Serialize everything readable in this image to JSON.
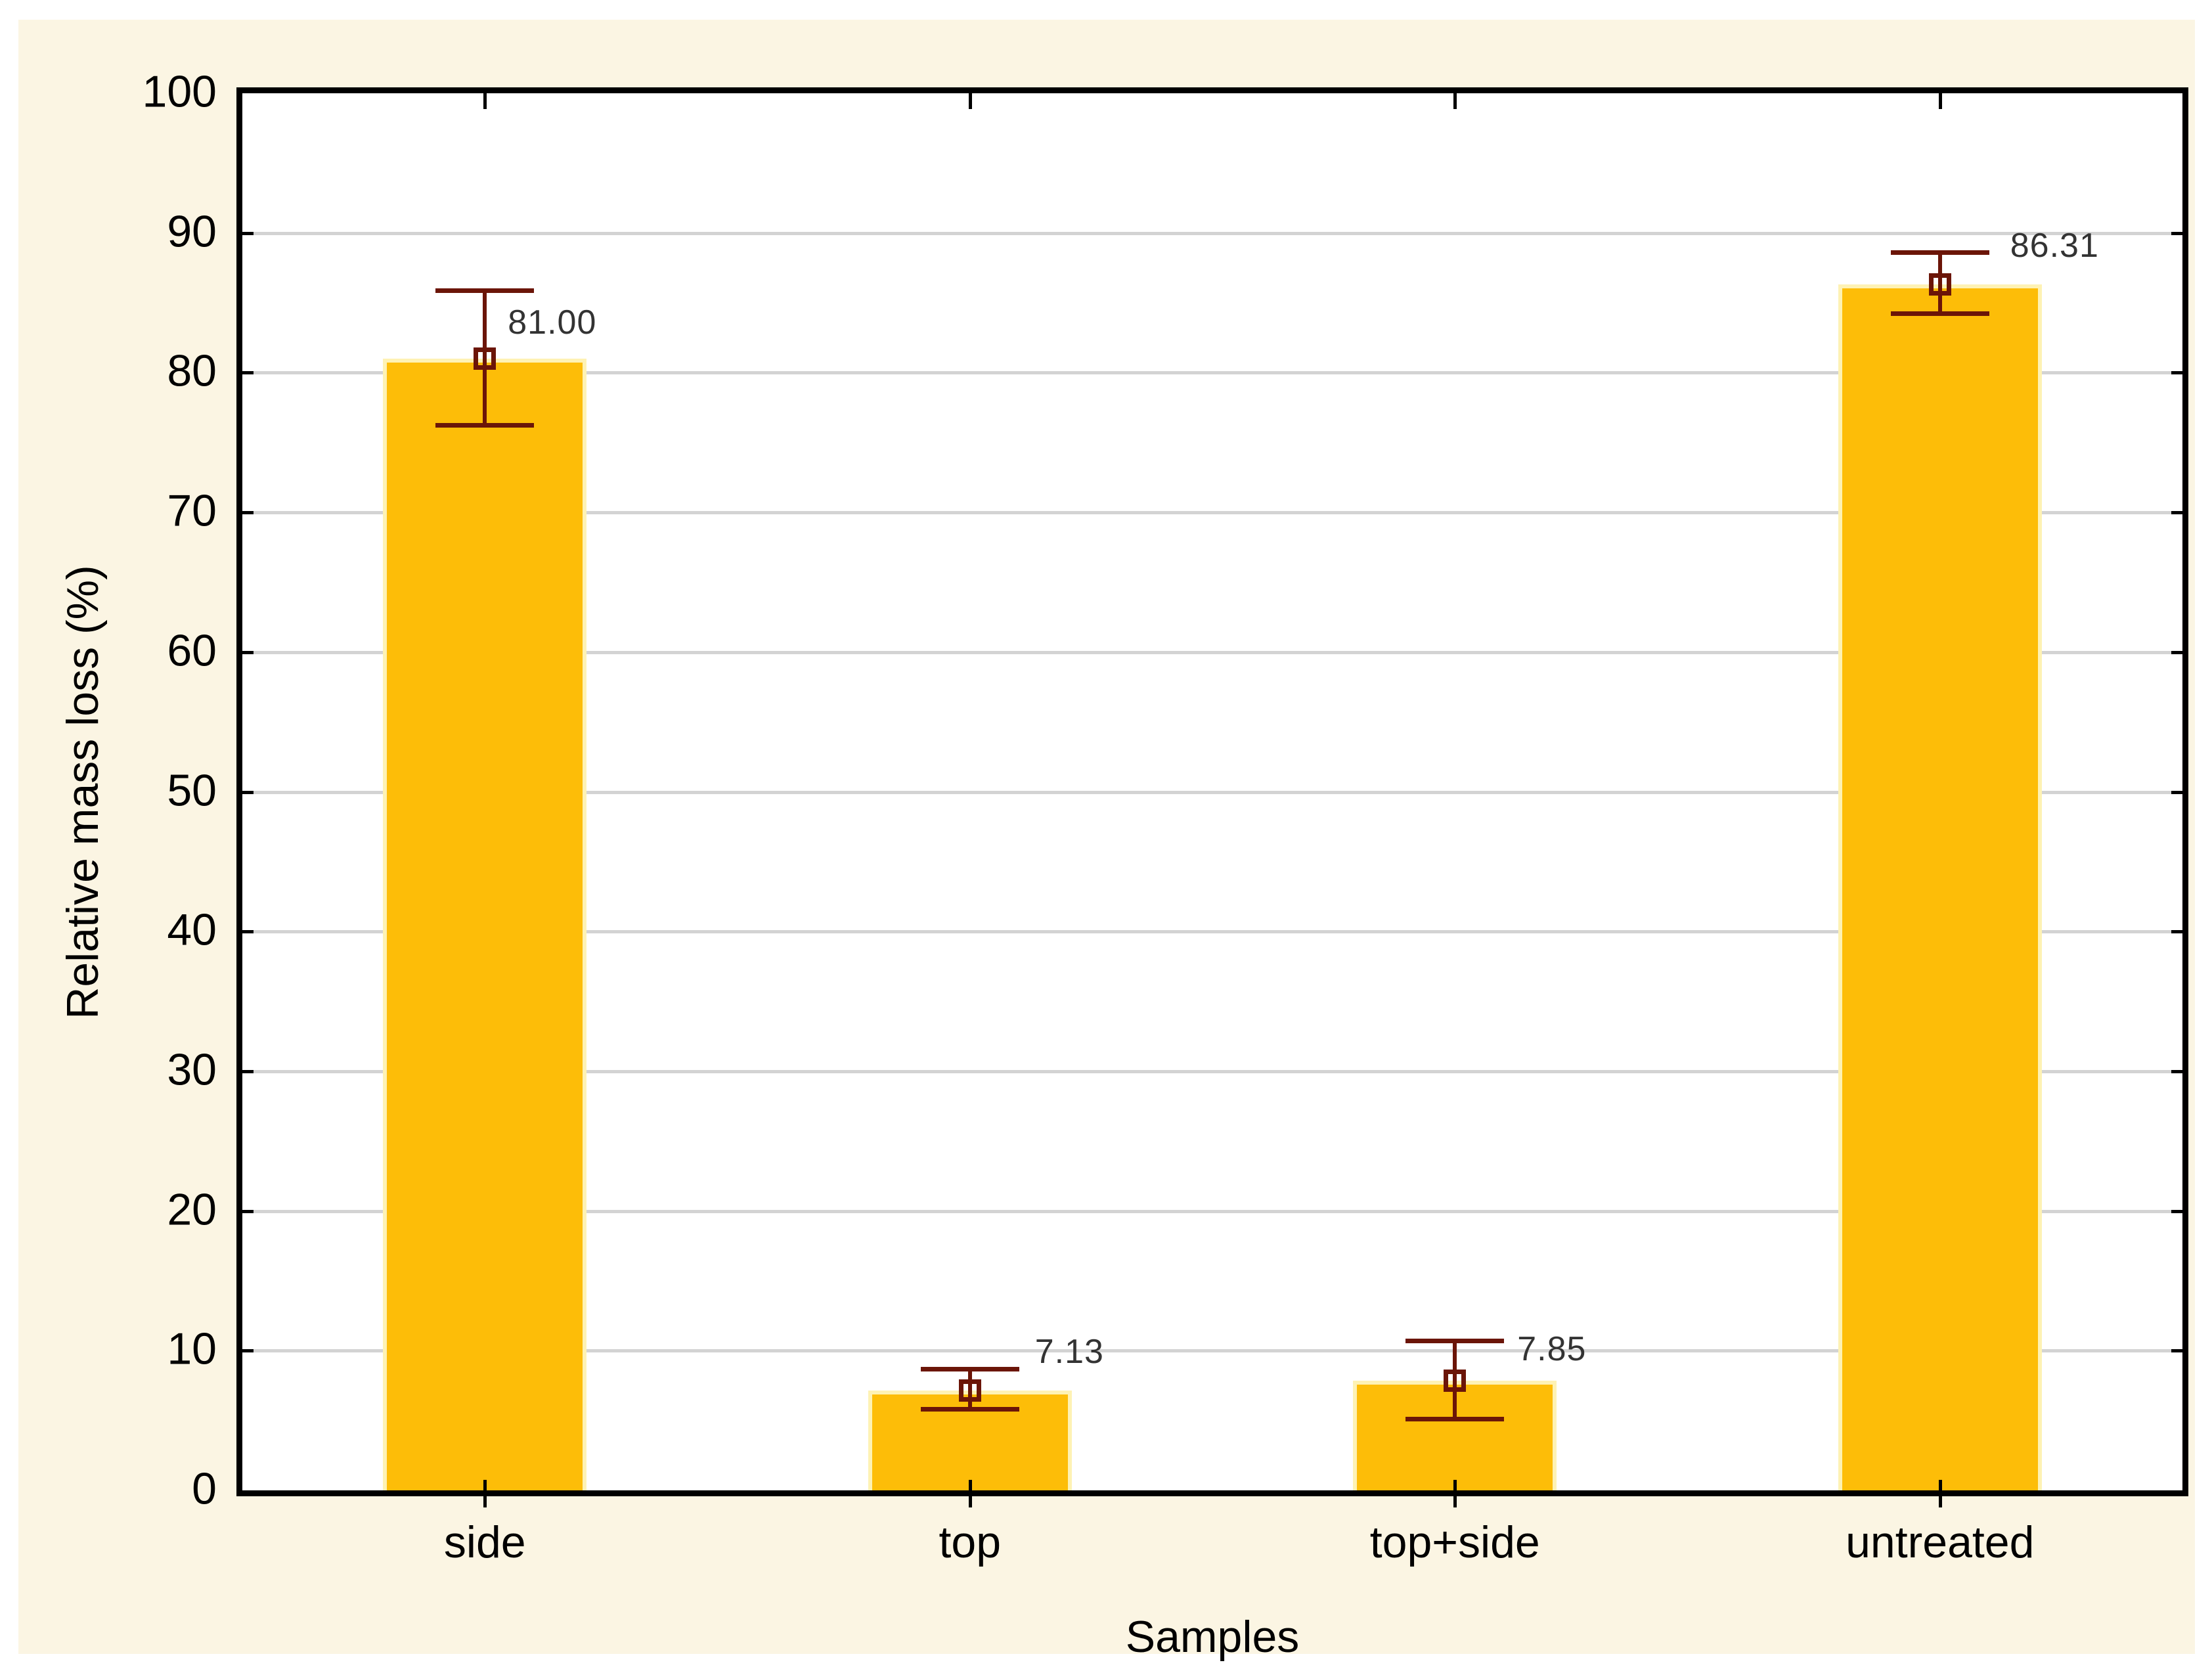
{
  "figure": {
    "page_background": "#FFFFFF",
    "panel_background": "#FBF5E3",
    "plot_background": "#FFFFFF",
    "frame_color": "#000000",
    "gridline_color": "#D3D3D3"
  },
  "chart_data": {
    "type": "bar",
    "title": "",
    "xlabel": "Samples",
    "ylabel": "Relative mass loss (%)",
    "ylim": [
      0,
      100
    ],
    "yticks": [
      0,
      10,
      20,
      30,
      40,
      50,
      60,
      70,
      80,
      90,
      100
    ],
    "grid": "horizontal-major",
    "legend": "none",
    "categories": [
      "side",
      "top",
      "top+side",
      "untreated"
    ],
    "values": [
      81.0,
      7.13,
      7.85,
      86.31
    ],
    "error_low": [
      76.2,
      5.8,
      5.1,
      84.2
    ],
    "error_high": [
      85.9,
      8.7,
      10.7,
      88.6
    ],
    "value_labels": [
      "81.00",
      "7.13",
      "7.85",
      "86.31"
    ],
    "value_label_anchors": [
      {
        "dx": 35,
        "y": 83.6
      },
      {
        "dx": 99,
        "y": 9.9
      },
      {
        "dx": 95,
        "y": 10.1
      },
      {
        "dx": 107,
        "y": 89.1
      }
    ],
    "colors": {
      "bar_fill": "#FDBD08",
      "bar_edge": "#FEF2B4",
      "error_bar": "#6B1508",
      "value_label_text": "#333333",
      "axis_text": "#000000"
    }
  }
}
